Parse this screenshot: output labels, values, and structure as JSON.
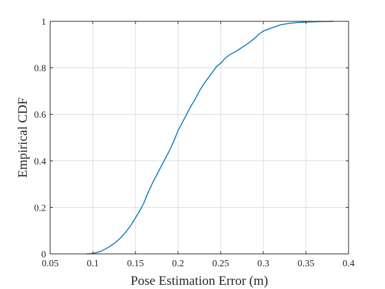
{
  "chart_data": {
    "type": "line",
    "title": "",
    "xlabel": "Pose Estimation Error (m)",
    "ylabel": "Empirical CDF",
    "xlim": [
      0.05,
      0.4
    ],
    "ylim": [
      0,
      1
    ],
    "xticks": [
      0.05,
      0.1,
      0.15,
      0.2,
      0.25,
      0.3,
      0.35,
      0.4
    ],
    "xtick_labels": [
      "0.05",
      "0.1",
      "0.15",
      "0.2",
      "0.25",
      "0.3",
      "0.35",
      "0.4"
    ],
    "yticks": [
      0,
      0.2,
      0.4,
      0.6,
      0.8,
      1
    ],
    "ytick_labels": [
      "0",
      "0.2",
      "0.4",
      "0.6",
      "0.8",
      "1"
    ],
    "grid": true,
    "line_color": "#0072BD",
    "series": [
      {
        "name": "",
        "x": [
          0.093,
          0.1,
          0.105,
          0.11,
          0.115,
          0.12,
          0.125,
          0.13,
          0.135,
          0.14,
          0.145,
          0.15,
          0.155,
          0.16,
          0.165,
          0.17,
          0.175,
          0.18,
          0.185,
          0.19,
          0.195,
          0.2,
          0.205,
          0.21,
          0.215,
          0.22,
          0.225,
          0.23,
          0.235,
          0.24,
          0.245,
          0.25,
          0.255,
          0.26,
          0.265,
          0.27,
          0.275,
          0.28,
          0.285,
          0.29,
          0.295,
          0.3,
          0.305,
          0.31,
          0.315,
          0.32,
          0.33,
          0.34,
          0.35,
          0.36,
          0.37,
          0.382
        ],
        "y": [
          0.0,
          0.002,
          0.006,
          0.012,
          0.022,
          0.032,
          0.045,
          0.06,
          0.078,
          0.1,
          0.125,
          0.155,
          0.185,
          0.22,
          0.265,
          0.305,
          0.34,
          0.375,
          0.41,
          0.445,
          0.485,
          0.53,
          0.565,
          0.6,
          0.635,
          0.665,
          0.7,
          0.73,
          0.755,
          0.78,
          0.805,
          0.82,
          0.84,
          0.855,
          0.865,
          0.875,
          0.888,
          0.9,
          0.913,
          0.928,
          0.945,
          0.958,
          0.965,
          0.972,
          0.978,
          0.985,
          0.991,
          0.995,
          0.997,
          0.998,
          0.999,
          1.0
        ]
      }
    ]
  }
}
